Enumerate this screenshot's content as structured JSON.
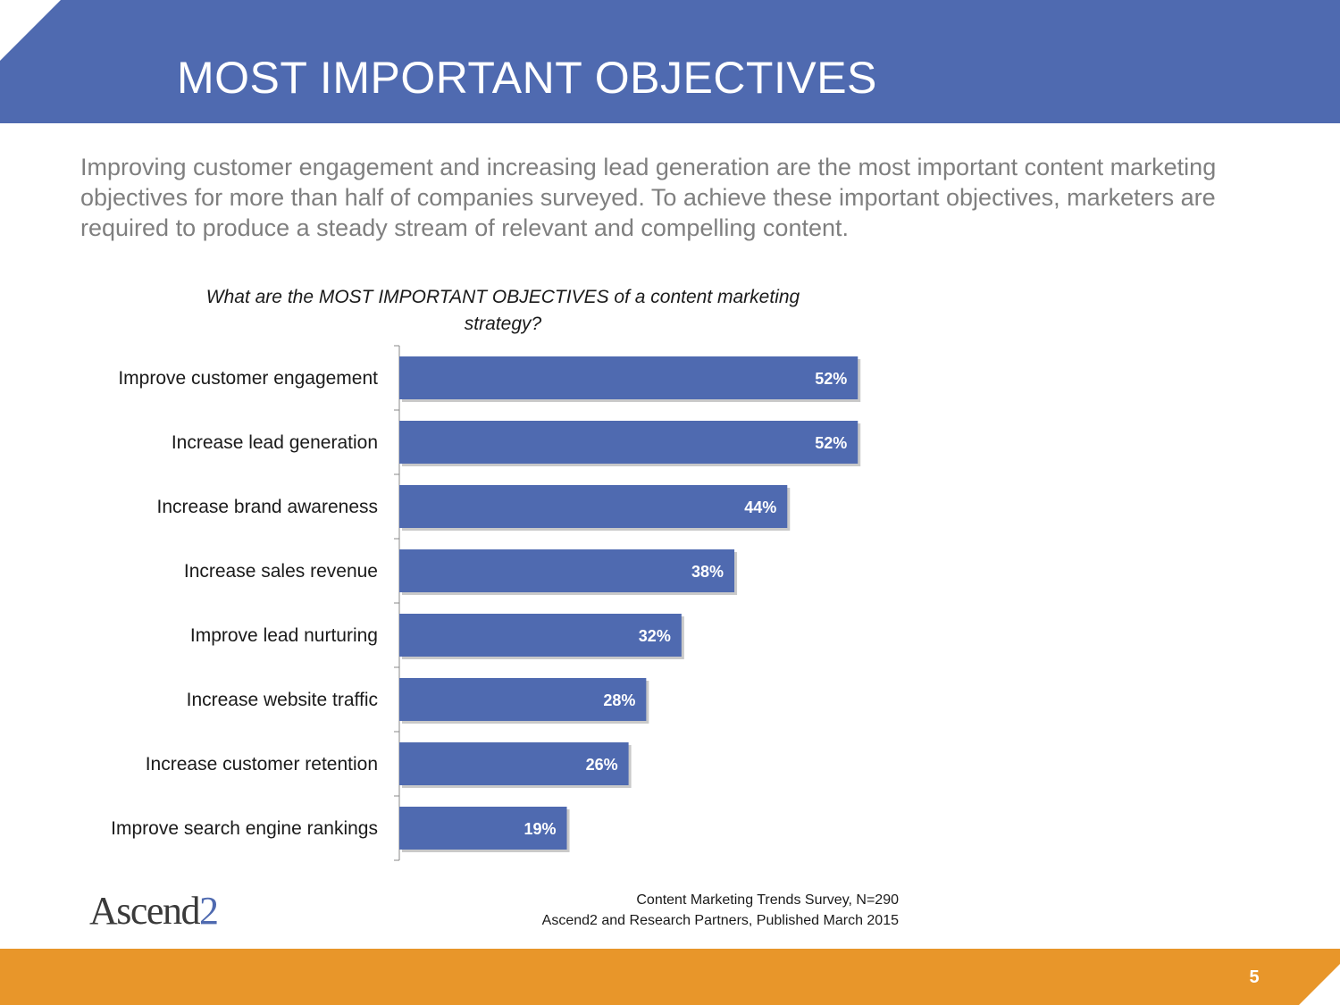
{
  "slide": {
    "title": "MOST IMPORTANT OBJECTIVES",
    "intro": "Improving customer engagement and increasing lead generation are the most important content marketing objectives for more than half of companies surveyed. To achieve these important objectives, marketers are required to produce a steady stream of relevant and compelling content.",
    "page_number": "5"
  },
  "logo": {
    "text": "Ascend",
    "suffix": "2"
  },
  "source": {
    "line1": "Content Marketing Trends Survey, N=290",
    "line2": "Ascend2 and Research Partners, Published March 2015"
  },
  "colors": {
    "header": "#4f6ab0",
    "bar": "#4f6ab0",
    "footer": "#e8962a",
    "intro_text": "#7f7f7f"
  },
  "chart_data": {
    "type": "bar",
    "orientation": "horizontal",
    "title": "What are the MOST IMPORTANT OBJECTIVES of a content marketing strategy?",
    "categories": [
      "Improve customer engagement",
      "Increase lead generation",
      "Increase brand awareness",
      "Increase sales revenue",
      "Improve lead nurturing",
      "Increase website traffic",
      "Increase customer retention",
      "Improve search engine rankings"
    ],
    "values": [
      52,
      52,
      44,
      38,
      32,
      28,
      26,
      19
    ],
    "value_labels": [
      "52%",
      "52%",
      "44%",
      "38%",
      "32%",
      "28%",
      "26%",
      "19%"
    ],
    "unit": "%",
    "xlim": [
      0,
      100
    ],
    "grid": false,
    "legend": "none"
  }
}
